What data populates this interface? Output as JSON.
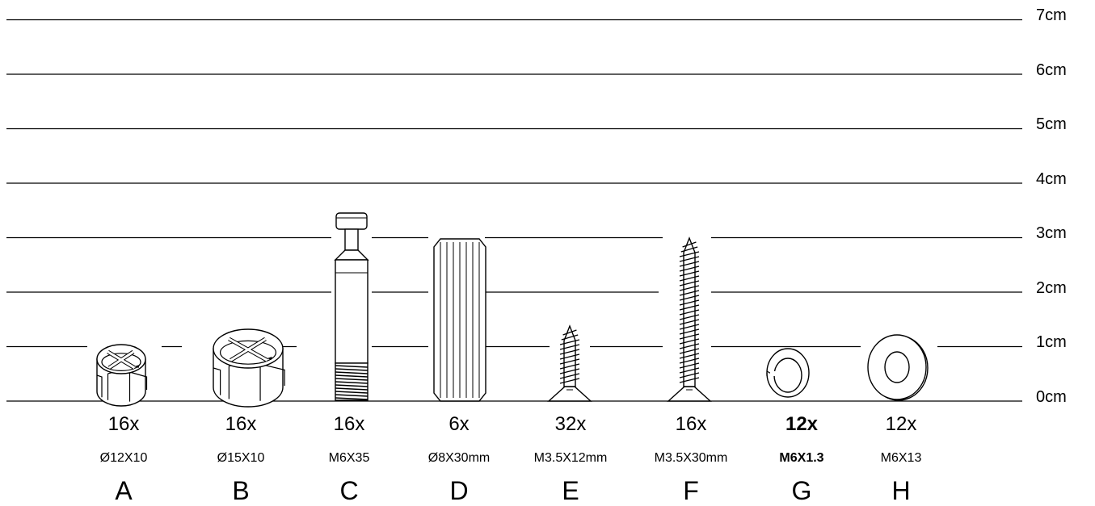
{
  "scale": {
    "unit": "cm",
    "marks": [
      "0cm",
      "1cm",
      "2cm",
      "3cm",
      "4cm",
      "5cm",
      "6cm",
      "7cm"
    ]
  },
  "parts": [
    {
      "letter": "A",
      "quantity": "16x",
      "spec": "Ø12X10",
      "icon": "cam-lock-small-icon",
      "height_cm": 0.95
    },
    {
      "letter": "B",
      "quantity": "16x",
      "spec": "Ø15X10",
      "icon": "cam-lock-large-icon",
      "height_cm": 1.1
    },
    {
      "letter": "C",
      "quantity": "16x",
      "spec": "M6X35",
      "icon": "cam-bolt-icon",
      "height_cm": 3.5
    },
    {
      "letter": "D",
      "quantity": "6x",
      "spec": "Ø8X30mm",
      "icon": "wooden-dowel-icon",
      "height_cm": 3.0
    },
    {
      "letter": "E",
      "quantity": "32x",
      "spec": "M3.5X12mm",
      "icon": "short-screw-icon",
      "height_cm": 1.35
    },
    {
      "letter": "F",
      "quantity": "16x",
      "spec": "M3.5X30mm",
      "icon": "long-screw-icon",
      "height_cm": 3.0
    },
    {
      "letter": "G",
      "quantity": "12x",
      "spec": "M6X1.3",
      "icon": "spring-washer-icon",
      "height_cm": 0.7
    },
    {
      "letter": "H",
      "quantity": "12x",
      "spec": "M6X13",
      "icon": "flat-washer-icon",
      "height_cm": 1.2
    }
  ]
}
